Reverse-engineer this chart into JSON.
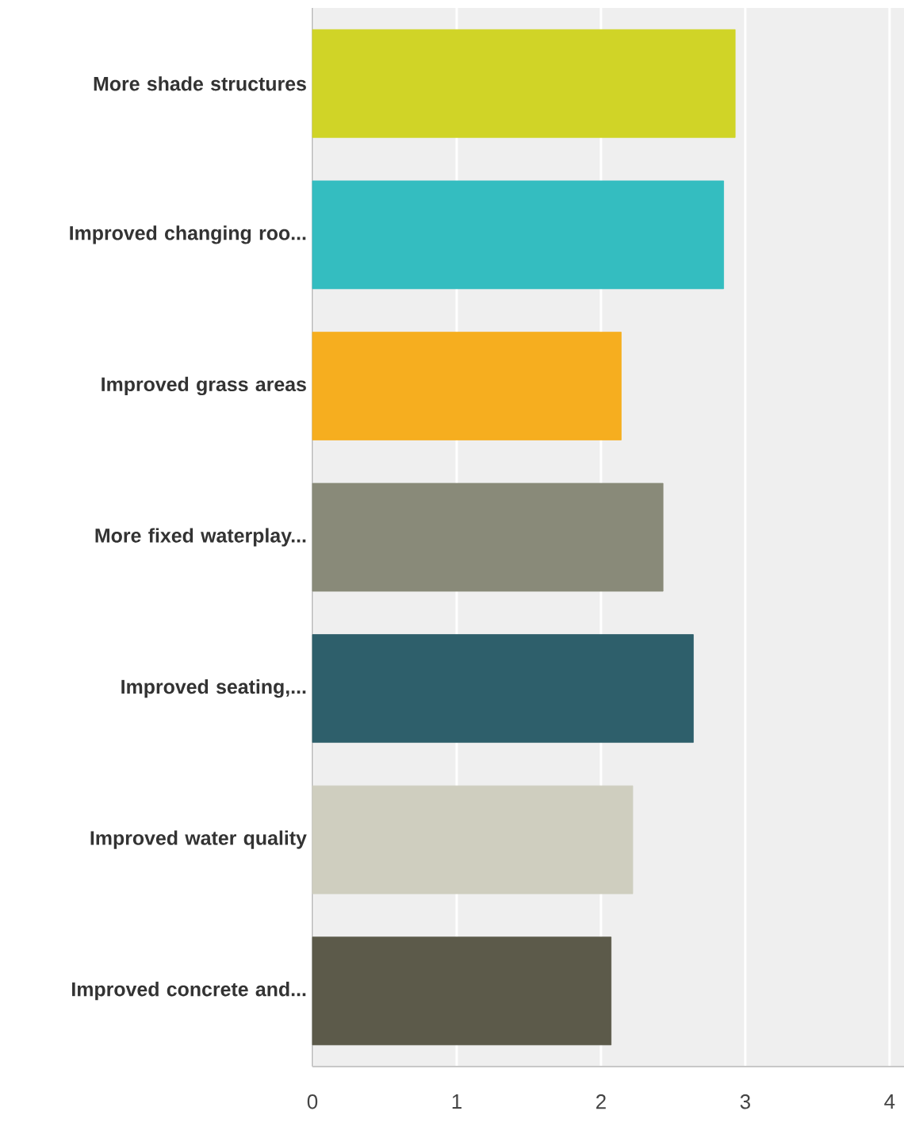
{
  "chart_data": {
    "type": "bar",
    "orientation": "horizontal",
    "categories": [
      "More shade structures",
      "Improved changing roo...",
      "Improved grass areas",
      "More fixed waterplay...",
      "Improved seating,...",
      "Improved water quality",
      "Improved concrete and..."
    ],
    "values": [
      2.93,
      2.85,
      2.14,
      2.43,
      2.64,
      2.22,
      2.07
    ],
    "colors": [
      "#d0d427",
      "#34bdc0",
      "#f6ae1f",
      "#898a79",
      "#2e5f6b",
      "#cfcebf",
      "#5c5a4a"
    ],
    "xlim": [
      0,
      4.1
    ],
    "xticks": [
      0,
      1,
      2,
      3,
      4
    ],
    "grid": "x"
  }
}
